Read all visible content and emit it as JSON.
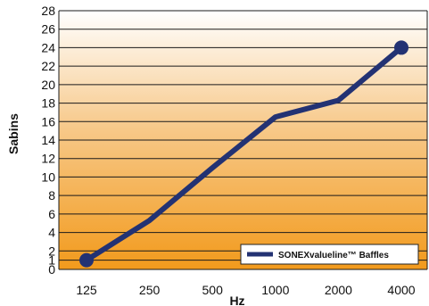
{
  "chart_data": {
    "type": "line",
    "categories": [
      "125",
      "250",
      "500",
      "1000",
      "2000",
      "4000"
    ],
    "series": [
      {
        "name": "SONEXvalueline™ Baffles",
        "values": [
          1,
          5.3,
          11,
          16.5,
          18.3,
          24
        ]
      }
    ],
    "xlabel": "Hz",
    "ylabel": "Sabins",
    "ylim": [
      0,
      28
    ],
    "yticks": [
      "0",
      "1",
      "2",
      "4",
      "6",
      "8",
      "10",
      "12",
      "14",
      "16",
      "18",
      "20",
      "22",
      "24",
      "26",
      "28"
    ],
    "grid": true,
    "legend": "bottom-right",
    "colors": {
      "line": "#233273",
      "gradient_bottom": "#f29a1c",
      "gradient_top": "#ffffff",
      "grid": "#1a1a1a"
    }
  }
}
